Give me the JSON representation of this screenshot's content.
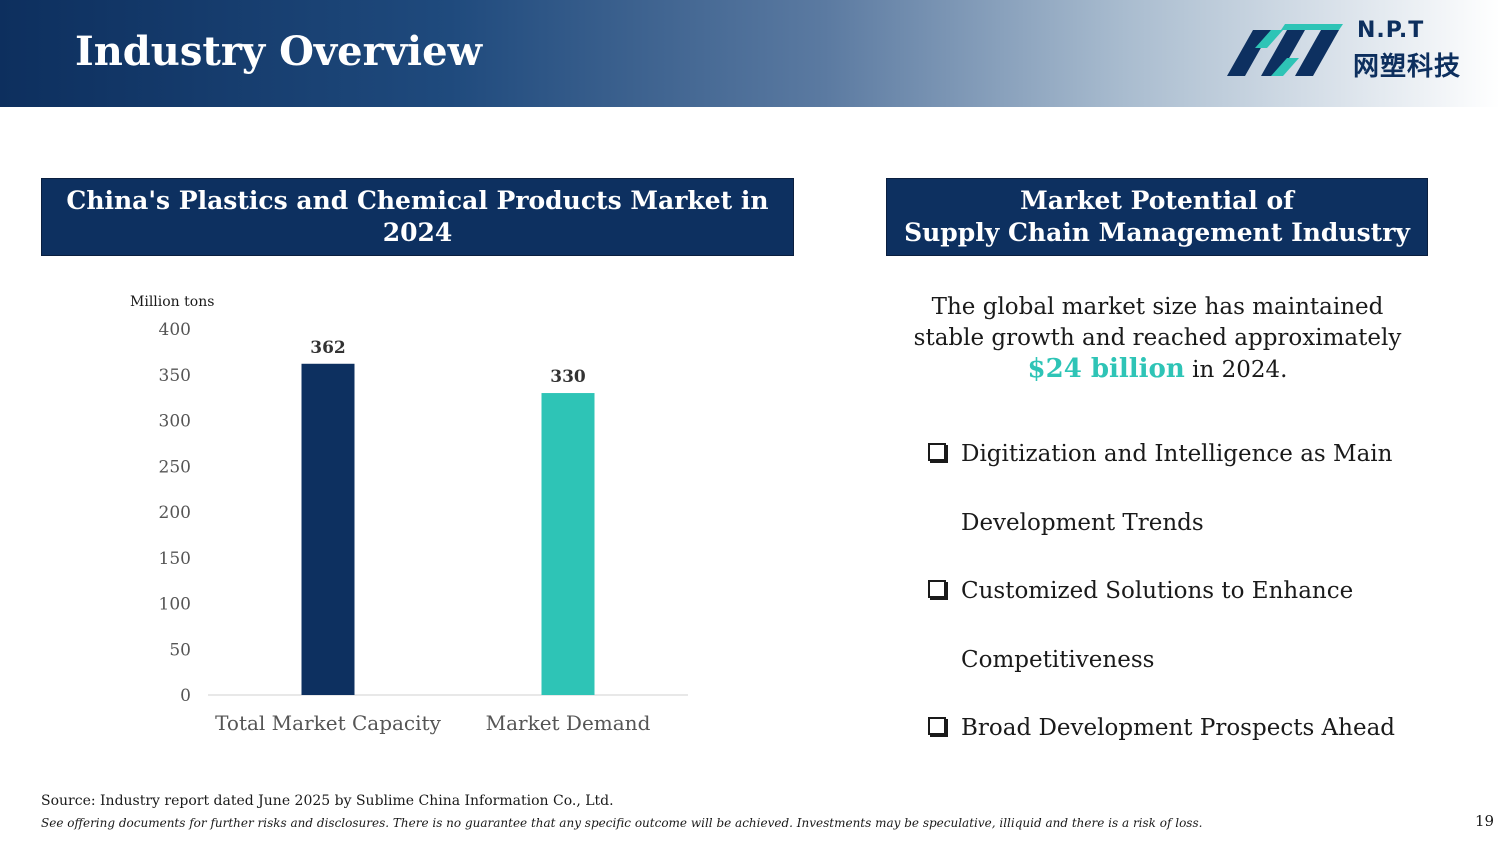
{
  "header": {
    "title": "Industry Overview"
  },
  "logo": {
    "en": "N.P.T",
    "cn": "网塑科技"
  },
  "left_panel": {
    "title": "China's Plastics and Chemical Products Market in 2024"
  },
  "right_panel": {
    "title_line1": "Market Potential of",
    "title_line2": "Supply Chain Management Industry",
    "desc_before": "The global market size has maintained stable growth and reached approximately ",
    "desc_highlight": "$24 billion",
    "desc_after": " in 2024.",
    "bullets": [
      "Digitization and Intelligence as Main Development Trends",
      "Customized Solutions to Enhance Competitiveness",
      "Broad Development Prospects Ahead"
    ]
  },
  "footer": {
    "source": "Source: Industry report dated June 2025 by Sublime China Information Co., Ltd.",
    "disclaimer": "See offering documents for further risks and disclosures. There is no guarantee that any specific outcome will be achieved. Investments may be speculative, illiquid and there is a risk of loss.",
    "page_number": "19"
  },
  "colors": {
    "navy": "#0d3060",
    "teal": "#2ec4b6"
  },
  "chart_data": {
    "type": "bar",
    "title": "China's Plastics and Chemical Products Market in 2024",
    "ylabel": "Million tons",
    "xlabel": "",
    "categories": [
      "Total Market Capacity",
      "Market Demand"
    ],
    "values": [
      362,
      330
    ],
    "data_labels": [
      "362",
      "330"
    ],
    "bar_colors": [
      "#0d3060",
      "#2ec4b6"
    ],
    "ylim": [
      0,
      400
    ],
    "yticks": [
      "0",
      "50",
      "100",
      "150",
      "200",
      "250",
      "300",
      "350",
      "400"
    ],
    "grid": false,
    "legend": "none"
  }
}
